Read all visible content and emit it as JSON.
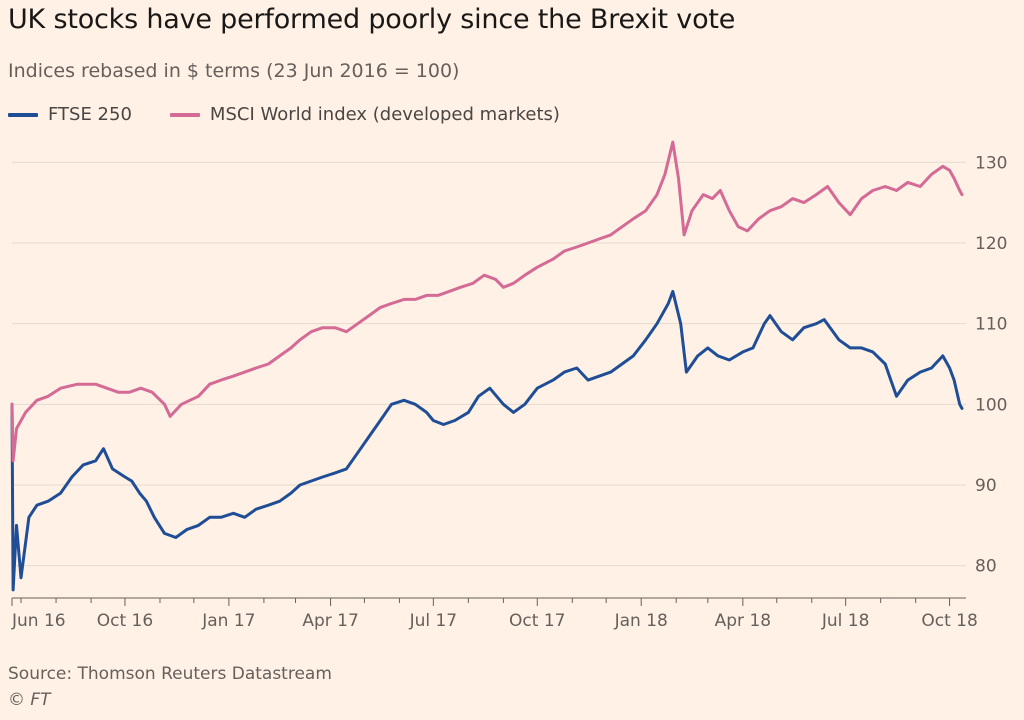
{
  "title": "UK stocks have performed poorly since the Brexit vote",
  "subtitle": "Indices rebased in $ terms (23 Jun 2016 = 100)",
  "source": "Source: Thomson Reuters Datastream",
  "copyright": "© FT",
  "chart_data": {
    "type": "line",
    "x_tick_labels": [
      "Jun 16",
      "Oct 16",
      "Jan 17",
      "Apr 17",
      "Jul 17",
      "Oct 17",
      "Jan 18",
      "Apr 18",
      "Jul 18",
      "Oct 18"
    ],
    "y_ticks": [
      80,
      90,
      100,
      110,
      120,
      130
    ],
    "ylim": [
      76,
      134
    ],
    "y_axis_position": "right",
    "grid": true,
    "legend_position": "top-left",
    "series": [
      {
        "name": "FTSE 250",
        "color": "#1f4e96",
        "points": [
          [
            "2016-06-23",
            100
          ],
          [
            "2016-06-24",
            77
          ],
          [
            "2016-06-27",
            85
          ],
          [
            "2016-07-01",
            78.5
          ],
          [
            "2016-07-08",
            86
          ],
          [
            "2016-07-15",
            87.5
          ],
          [
            "2016-07-25",
            88
          ],
          [
            "2016-08-05",
            89
          ],
          [
            "2016-08-15",
            91
          ],
          [
            "2016-08-25",
            92.5
          ],
          [
            "2016-09-05",
            93
          ],
          [
            "2016-09-12",
            94.5
          ],
          [
            "2016-09-20",
            92
          ],
          [
            "2016-10-01",
            91
          ],
          [
            "2016-10-07",
            90.5
          ],
          [
            "2016-10-14",
            89
          ],
          [
            "2016-10-20",
            88
          ],
          [
            "2016-10-27",
            86
          ],
          [
            "2016-11-05",
            84
          ],
          [
            "2016-11-15",
            83.5
          ],
          [
            "2016-11-25",
            84.5
          ],
          [
            "2016-12-05",
            85
          ],
          [
            "2016-12-15",
            86
          ],
          [
            "2016-12-25",
            86
          ],
          [
            "2017-01-05",
            86.5
          ],
          [
            "2017-01-15",
            86
          ],
          [
            "2017-01-25",
            87
          ],
          [
            "2017-02-05",
            87.5
          ],
          [
            "2017-02-15",
            88
          ],
          [
            "2017-02-25",
            89
          ],
          [
            "2017-03-05",
            90
          ],
          [
            "2017-03-15",
            90.5
          ],
          [
            "2017-03-25",
            91
          ],
          [
            "2017-04-05",
            91.5
          ],
          [
            "2017-04-15",
            92
          ],
          [
            "2017-04-25",
            94
          ],
          [
            "2017-05-05",
            96
          ],
          [
            "2017-05-15",
            98
          ],
          [
            "2017-05-25",
            100
          ],
          [
            "2017-06-05",
            100.5
          ],
          [
            "2017-06-15",
            100
          ],
          [
            "2017-06-25",
            99
          ],
          [
            "2017-07-01",
            98
          ],
          [
            "2017-07-10",
            97.5
          ],
          [
            "2017-07-20",
            98
          ],
          [
            "2017-08-01",
            99
          ],
          [
            "2017-08-10",
            101
          ],
          [
            "2017-08-20",
            102
          ],
          [
            "2017-09-01",
            100
          ],
          [
            "2017-09-10",
            99
          ],
          [
            "2017-09-20",
            100
          ],
          [
            "2017-10-01",
            102
          ],
          [
            "2017-10-15",
            103
          ],
          [
            "2017-10-25",
            104
          ],
          [
            "2017-11-05",
            104.5
          ],
          [
            "2017-11-15",
            103
          ],
          [
            "2017-11-25",
            103.5
          ],
          [
            "2017-12-05",
            104
          ],
          [
            "2017-12-15",
            105
          ],
          [
            "2017-12-25",
            106
          ],
          [
            "2018-01-05",
            108
          ],
          [
            "2018-01-15",
            110
          ],
          [
            "2018-01-25",
            112.5
          ],
          [
            "2018-01-29",
            114
          ],
          [
            "2018-02-05",
            110
          ],
          [
            "2018-02-10",
            104
          ],
          [
            "2018-02-20",
            106
          ],
          [
            "2018-03-01",
            107
          ],
          [
            "2018-03-10",
            106
          ],
          [
            "2018-03-20",
            105.5
          ],
          [
            "2018-04-01",
            106.5
          ],
          [
            "2018-04-10",
            107
          ],
          [
            "2018-04-20",
            110
          ],
          [
            "2018-04-25",
            111
          ],
          [
            "2018-05-05",
            109
          ],
          [
            "2018-05-15",
            108
          ],
          [
            "2018-05-25",
            109.5
          ],
          [
            "2018-06-05",
            110
          ],
          [
            "2018-06-12",
            110.5
          ],
          [
            "2018-06-25",
            108
          ],
          [
            "2018-07-05",
            107
          ],
          [
            "2018-07-15",
            107
          ],
          [
            "2018-07-25",
            106.5
          ],
          [
            "2018-08-05",
            105
          ],
          [
            "2018-08-15",
            101
          ],
          [
            "2018-08-25",
            103
          ],
          [
            "2018-09-05",
            104
          ],
          [
            "2018-09-15",
            104.5
          ],
          [
            "2018-09-25",
            106
          ],
          [
            "2018-10-01",
            104.5
          ],
          [
            "2018-10-05",
            103
          ],
          [
            "2018-10-10",
            100
          ],
          [
            "2018-10-12",
            99.5
          ]
        ]
      },
      {
        "name": "MSCI World index (developed markets)",
        "color": "#d46a96",
        "points": [
          [
            "2016-06-23",
            100
          ],
          [
            "2016-06-24",
            93
          ],
          [
            "2016-06-27",
            97
          ],
          [
            "2016-07-05",
            99
          ],
          [
            "2016-07-15",
            100.5
          ],
          [
            "2016-07-25",
            101
          ],
          [
            "2016-08-05",
            102
          ],
          [
            "2016-08-20",
            102.5
          ],
          [
            "2016-09-05",
            102.5
          ],
          [
            "2016-09-15",
            102
          ],
          [
            "2016-09-25",
            101.5
          ],
          [
            "2016-10-05",
            101.5
          ],
          [
            "2016-10-15",
            102
          ],
          [
            "2016-10-25",
            101.5
          ],
          [
            "2016-11-05",
            100
          ],
          [
            "2016-11-10",
            98.5
          ],
          [
            "2016-11-20",
            100
          ],
          [
            "2016-12-05",
            101
          ],
          [
            "2016-12-15",
            102.5
          ],
          [
            "2016-12-25",
            103
          ],
          [
            "2017-01-05",
            103.5
          ],
          [
            "2017-01-15",
            104
          ],
          [
            "2017-01-25",
            104.5
          ],
          [
            "2017-02-05",
            105
          ],
          [
            "2017-02-15",
            106
          ],
          [
            "2017-02-25",
            107
          ],
          [
            "2017-03-05",
            108
          ],
          [
            "2017-03-15",
            109
          ],
          [
            "2017-03-25",
            109.5
          ],
          [
            "2017-04-05",
            109.5
          ],
          [
            "2017-04-15",
            109
          ],
          [
            "2017-04-25",
            110
          ],
          [
            "2017-05-05",
            111
          ],
          [
            "2017-05-15",
            112
          ],
          [
            "2017-05-25",
            112.5
          ],
          [
            "2017-06-05",
            113
          ],
          [
            "2017-06-15",
            113
          ],
          [
            "2017-06-25",
            113.5
          ],
          [
            "2017-07-05",
            113.5
          ],
          [
            "2017-07-15",
            114
          ],
          [
            "2017-07-25",
            114.5
          ],
          [
            "2017-08-05",
            115
          ],
          [
            "2017-08-15",
            116
          ],
          [
            "2017-08-25",
            115.5
          ],
          [
            "2017-09-01",
            114.5
          ],
          [
            "2017-09-10",
            115
          ],
          [
            "2017-09-20",
            116
          ],
          [
            "2017-10-01",
            117
          ],
          [
            "2017-10-15",
            118
          ],
          [
            "2017-10-25",
            119
          ],
          [
            "2017-11-05",
            119.5
          ],
          [
            "2017-11-15",
            120
          ],
          [
            "2017-11-25",
            120.5
          ],
          [
            "2017-12-05",
            121
          ],
          [
            "2017-12-15",
            122
          ],
          [
            "2017-12-25",
            123
          ],
          [
            "2018-01-05",
            124
          ],
          [
            "2018-01-15",
            126
          ],
          [
            "2018-01-22",
            128.5
          ],
          [
            "2018-01-29",
            132.5
          ],
          [
            "2018-02-03",
            128
          ],
          [
            "2018-02-08",
            121
          ],
          [
            "2018-02-15",
            124
          ],
          [
            "2018-02-25",
            126
          ],
          [
            "2018-03-05",
            125.5
          ],
          [
            "2018-03-12",
            126.5
          ],
          [
            "2018-03-20",
            124
          ],
          [
            "2018-03-28",
            122
          ],
          [
            "2018-04-05",
            121.5
          ],
          [
            "2018-04-15",
            123
          ],
          [
            "2018-04-25",
            124
          ],
          [
            "2018-05-05",
            124.5
          ],
          [
            "2018-05-15",
            125.5
          ],
          [
            "2018-05-25",
            125
          ],
          [
            "2018-06-05",
            126
          ],
          [
            "2018-06-15",
            127
          ],
          [
            "2018-06-25",
            125
          ],
          [
            "2018-07-05",
            123.5
          ],
          [
            "2018-07-15",
            125.5
          ],
          [
            "2018-07-25",
            126.5
          ],
          [
            "2018-08-05",
            127
          ],
          [
            "2018-08-15",
            126.5
          ],
          [
            "2018-08-25",
            127.5
          ],
          [
            "2018-09-05",
            127
          ],
          [
            "2018-09-15",
            128.5
          ],
          [
            "2018-09-25",
            129.5
          ],
          [
            "2018-10-01",
            129
          ],
          [
            "2018-10-05",
            128
          ],
          [
            "2018-10-10",
            126.5
          ],
          [
            "2018-10-12",
            126
          ]
        ]
      }
    ]
  }
}
